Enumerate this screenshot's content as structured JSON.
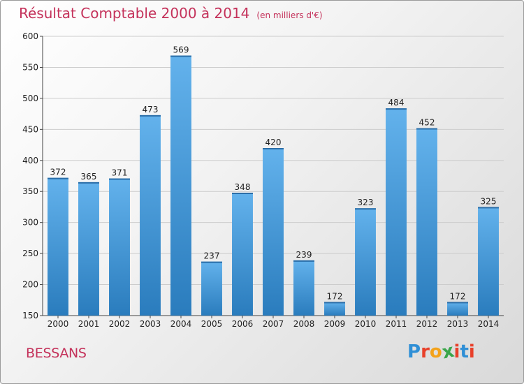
{
  "title": "Résultat Comptable 2000 à 2014",
  "unit": "(en milliers d'€)",
  "commune": "BESSANS",
  "logo": {
    "letters": [
      "P",
      "r",
      "o",
      "x",
      "i",
      "t",
      "i"
    ],
    "colors": [
      "#2f8fd6",
      "#e8402a",
      "#f3a21a",
      "#3aa54a",
      "#e8402a",
      "#2f8fd6",
      "#e8402a"
    ]
  },
  "colors": {
    "bar_top": "#63b2ec",
    "bar_bottom": "#2a7cbd",
    "grid": "#cccccc",
    "title": "#c4315a"
  },
  "chart_data": {
    "type": "bar",
    "categories": [
      "2000",
      "2001",
      "2002",
      "2003",
      "2004",
      "2005",
      "2006",
      "2007",
      "2008",
      "2009",
      "2010",
      "2011",
      "2012",
      "2013",
      "2014"
    ],
    "values": [
      372,
      365,
      371,
      473,
      569,
      237,
      348,
      420,
      239,
      172,
      323,
      484,
      452,
      172,
      325
    ],
    "title": "Résultat Comptable 2000 à 2014",
    "ylim": [
      150,
      600
    ],
    "yticks": [
      150,
      200,
      250,
      300,
      350,
      400,
      450,
      500,
      550,
      600
    ],
    "grid": true
  }
}
